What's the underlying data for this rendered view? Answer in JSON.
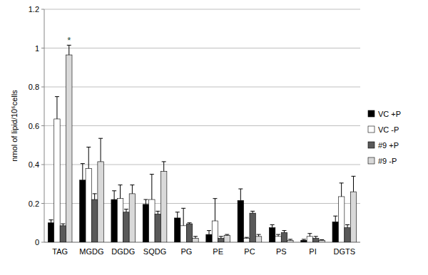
{
  "chart_data": {
    "type": "bar",
    "y_label": "nmol of lipid/10⁶cells",
    "categories": [
      "TAG",
      "MGDG",
      "DGDG",
      "SQDG",
      "PG",
      "PE",
      "PC",
      "PS",
      "PI",
      "DGTS"
    ],
    "series": [
      {
        "name": "VC +P",
        "color": "#000000",
        "values": [
          0.1,
          0.32,
          0.22,
          0.195,
          0.125,
          0.04,
          0.215,
          0.075,
          0.01,
          0.105
        ],
        "errors": [
          0.015,
          0.085,
          0.045,
          0.025,
          0.03,
          0.02,
          0.06,
          0.015,
          0.005,
          0.03
        ]
      },
      {
        "name": "VC -P",
        "color": "#ffffff",
        "values": [
          0.635,
          0.38,
          0.225,
          0.22,
          0.085,
          0.11,
          0.02,
          0.03,
          0.03,
          0.235
        ],
        "errors": [
          0.115,
          0.11,
          0.07,
          0.13,
          0.09,
          0.115,
          0.005,
          0.01,
          0.015,
          0.07
        ]
      },
      {
        "name": "#9 +P",
        "color": "#595959",
        "values": [
          0.085,
          0.22,
          0.155,
          0.145,
          0.095,
          0.02,
          0.15,
          0.05,
          0.02,
          0.075
        ],
        "errors": [
          0.01,
          0.03,
          0.015,
          0.015,
          0.005,
          0.01,
          0.01,
          0.01,
          0.01,
          0.015
        ]
      },
      {
        "name": "#9 -P",
        "color": "#d9d9d9",
        "values": [
          0.965,
          0.415,
          0.25,
          0.365,
          0.02,
          0.035,
          0.03,
          0.01,
          0.01,
          0.26
        ],
        "errors": [
          0.05,
          0.12,
          0.045,
          0.05,
          0.01,
          0.005,
          0.01,
          0.005,
          0.003,
          0.08
        ]
      }
    ],
    "ylim": [
      0,
      1.2
    ],
    "yticks": [
      0,
      0.2,
      0.4,
      0.6,
      0.8,
      1,
      1.2
    ],
    "grid": true,
    "legend": "right",
    "annotations": [
      {
        "text": "*",
        "category": "TAG",
        "series": "#9 -P"
      }
    ]
  }
}
